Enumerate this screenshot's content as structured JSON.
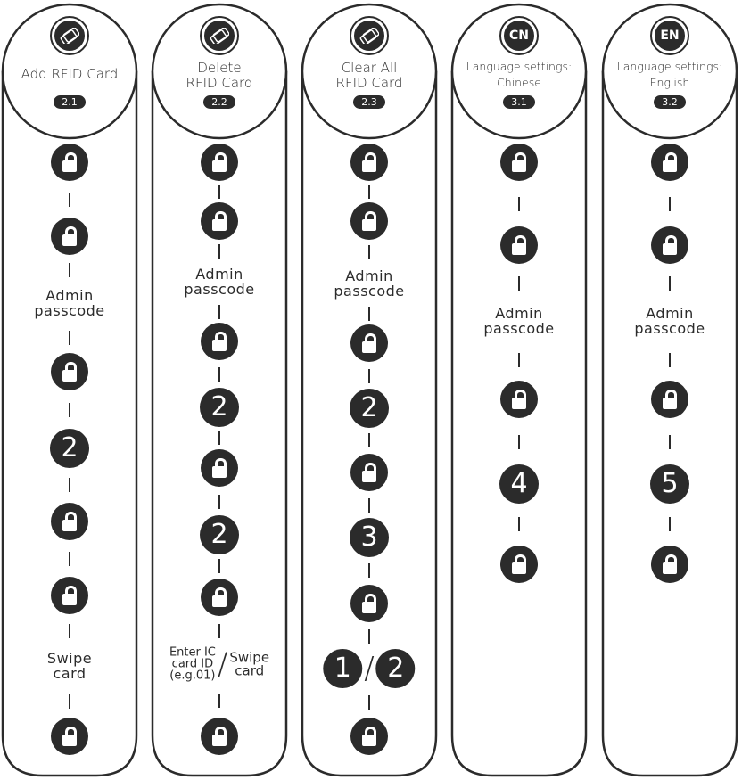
{
  "colors": {
    "ink": "#2b2b2b",
    "background": "#ffffff"
  },
  "columns": [
    {
      "icon": "rfid-card-add-icon",
      "title": [
        "Add RFID Card"
      ],
      "badge": "2.1",
      "steps": [
        {
          "t": "lock"
        },
        {
          "t": "lock"
        },
        {
          "t": "text",
          "v": [
            "Admin",
            "passcode"
          ]
        },
        {
          "t": "lock"
        },
        {
          "t": "num",
          "v": "2"
        },
        {
          "t": "lock"
        },
        {
          "t": "lock"
        },
        {
          "t": "text",
          "v": [
            "Swipe",
            "card"
          ]
        },
        {
          "t": "lock"
        }
      ]
    },
    {
      "icon": "rfid-card-delete-icon",
      "title": [
        "Delete",
        "RFID Card"
      ],
      "badge": "2.2",
      "steps": [
        {
          "t": "lock"
        },
        {
          "t": "lock"
        },
        {
          "t": "text",
          "v": [
            "Admin",
            "passcode"
          ]
        },
        {
          "t": "lock"
        },
        {
          "t": "num",
          "v": "2"
        },
        {
          "t": "lock"
        },
        {
          "t": "num",
          "v": "2"
        },
        {
          "t": "lock"
        },
        {
          "t": "or-text",
          "a": [
            "Enter IC",
            "card ID",
            "(e.g.01)"
          ],
          "b": [
            "Swipe",
            "card"
          ]
        },
        {
          "t": "lock"
        }
      ]
    },
    {
      "icon": "rfid-card-clear-icon",
      "title": [
        "Clear All",
        "RFID Card"
      ],
      "badge": "2.3",
      "steps": [
        {
          "t": "lock"
        },
        {
          "t": "lock"
        },
        {
          "t": "text",
          "v": [
            "Admin",
            "passcode"
          ]
        },
        {
          "t": "lock"
        },
        {
          "t": "num",
          "v": "2"
        },
        {
          "t": "lock"
        },
        {
          "t": "num",
          "v": "3"
        },
        {
          "t": "lock"
        },
        {
          "t": "or-num",
          "a": "1",
          "b": "2"
        },
        {
          "t": "lock"
        }
      ]
    },
    {
      "icon": "cn-icon",
      "icon_text": "CN",
      "title": [
        "Language settings:",
        "Chinese"
      ],
      "badge": "3.1",
      "steps": [
        {
          "t": "lock"
        },
        {
          "t": "lock"
        },
        {
          "t": "text",
          "v": [
            "Admin",
            "passcode"
          ]
        },
        {
          "t": "lock"
        },
        {
          "t": "num",
          "v": "4"
        },
        {
          "t": "lock"
        }
      ]
    },
    {
      "icon": "en-icon",
      "icon_text": "EN",
      "title": [
        "Language settings:",
        "English"
      ],
      "badge": "3.2",
      "steps": [
        {
          "t": "lock"
        },
        {
          "t": "lock"
        },
        {
          "t": "text",
          "v": [
            "Admin",
            "passcode"
          ]
        },
        {
          "t": "lock"
        },
        {
          "t": "num",
          "v": "5"
        },
        {
          "t": "lock"
        }
      ]
    }
  ]
}
